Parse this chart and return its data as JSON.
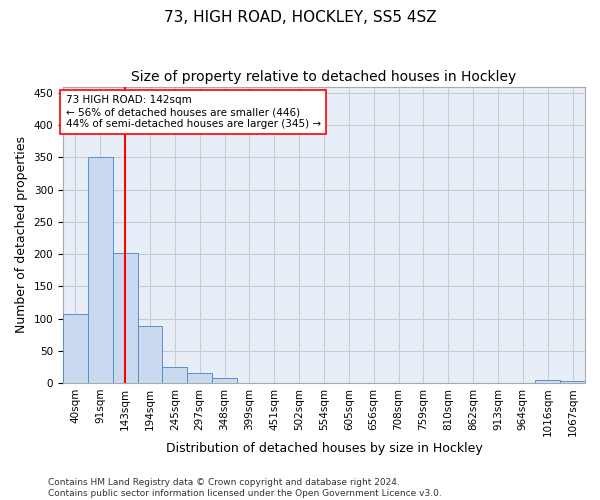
{
  "title": "73, HIGH ROAD, HOCKLEY, SS5 4SZ",
  "subtitle": "Size of property relative to detached houses in Hockley",
  "xlabel": "Distribution of detached houses by size in Hockley",
  "ylabel": "Number of detached properties",
  "footer": "Contains HM Land Registry data © Crown copyright and database right 2024.\nContains public sector information licensed under the Open Government Licence v3.0.",
  "categories": [
    "40sqm",
    "91sqm",
    "143sqm",
    "194sqm",
    "245sqm",
    "297sqm",
    "348sqm",
    "399sqm",
    "451sqm",
    "502sqm",
    "554sqm",
    "605sqm",
    "656sqm",
    "708sqm",
    "759sqm",
    "810sqm",
    "862sqm",
    "913sqm",
    "964sqm",
    "1016sqm",
    "1067sqm"
  ],
  "values": [
    107,
    350,
    202,
    88,
    25,
    15,
    8,
    0,
    0,
    0,
    0,
    0,
    0,
    0,
    0,
    0,
    0,
    0,
    0,
    5,
    3
  ],
  "bar_color": "#c9d9f0",
  "bar_edge_color": "#5b8fc9",
  "line_x_index": 2,
  "line_color": "red",
  "annotation_text": "73 HIGH ROAD: 142sqm\n← 56% of detached houses are smaller (446)\n44% of semi-detached houses are larger (345) →",
  "annotation_box_color": "white",
  "annotation_box_edge": "red",
  "ylim": [
    0,
    460
  ],
  "background_color": "#e8eef8",
  "grid_color": "#cccccc",
  "title_fontsize": 11,
  "subtitle_fontsize": 10,
  "axis_label_fontsize": 9,
  "tick_fontsize": 7.5,
  "footer_fontsize": 6.5
}
